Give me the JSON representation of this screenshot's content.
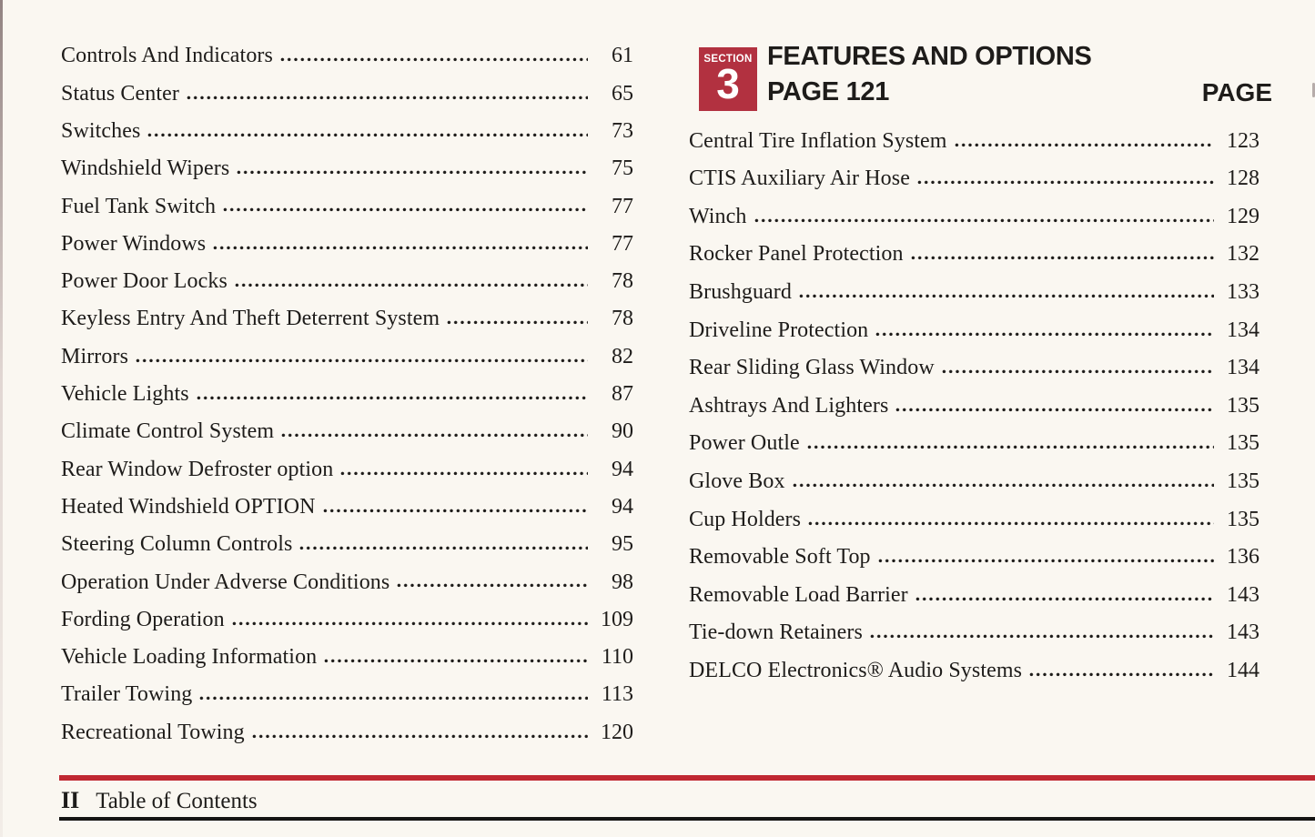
{
  "colors": {
    "page_bg": "#faf7f1",
    "text": "#1e1c1a",
    "badge_red": "#b23140",
    "rule_red": "#c02832",
    "rule_black": "#151413"
  },
  "left_column": {
    "entries": [
      {
        "title": "Controls And Indicators",
        "page": "61"
      },
      {
        "title": "Status Center",
        "page": "65"
      },
      {
        "title": "Switches",
        "page": "73"
      },
      {
        "title": "Windshield Wipers",
        "page": "75"
      },
      {
        "title": "Fuel Tank Switch",
        "page": "77"
      },
      {
        "title": "Power Windows",
        "page": "77"
      },
      {
        "title": "Power Door Locks",
        "page": "78"
      },
      {
        "title": "Keyless Entry And Theft Deterrent System",
        "page": "78"
      },
      {
        "title": "Mirrors",
        "page": "82"
      },
      {
        "title": "Vehicle Lights",
        "page": "87"
      },
      {
        "title": "Climate Control System",
        "page": "90"
      },
      {
        "title": "Rear Window Defroster option",
        "page": "94"
      },
      {
        "title": "Heated Windshield OPTION",
        "page": "94"
      },
      {
        "title": "Steering Column Controls",
        "page": "95"
      },
      {
        "title": "Operation Under Adverse Conditions",
        "page": "98"
      },
      {
        "title": "Fording Operation",
        "page": "109"
      },
      {
        "title": "Vehicle Loading Information",
        "page": "110"
      },
      {
        "title": "Trailer Towing",
        "page": "113"
      },
      {
        "title": "Recreational Towing",
        "page": "120"
      }
    ]
  },
  "right_column": {
    "header": {
      "badge": {
        "label": "SECTION",
        "number": "3"
      },
      "title": "FEATURES AND OPTIONS",
      "subtitle": "PAGE 121",
      "page_label": "PAGE"
    },
    "entries": [
      {
        "title": "Central Tire Inflation System",
        "page": "123"
      },
      {
        "title": "CTIS Auxiliary Air Hose",
        "page": "128"
      },
      {
        "title": "Winch",
        "page": "129"
      },
      {
        "title": "Rocker Panel Protection",
        "page": "132"
      },
      {
        "title": "Brushguard",
        "page": "133"
      },
      {
        "title": "Driveline Protection",
        "page": "134"
      },
      {
        "title": "Rear Sliding Glass Window",
        "page": "134"
      },
      {
        "title": "Ashtrays And Lighters",
        "page": "135"
      },
      {
        "title": "Power Outle",
        "page": "135"
      },
      {
        "title": "Glove Box",
        "page": "135"
      },
      {
        "title": "Cup Holders",
        "page": "135"
      },
      {
        "title": "Removable Soft Top",
        "page": "136"
      },
      {
        "title": "Removable Load Barrier",
        "page": "143"
      },
      {
        "title": "Tie-down Retainers",
        "page": "143"
      },
      {
        "title": "DELCO Electronics® Audio Systems",
        "page": "144"
      }
    ]
  },
  "footer": {
    "page_marker": "II",
    "label": "Table of Contents"
  }
}
